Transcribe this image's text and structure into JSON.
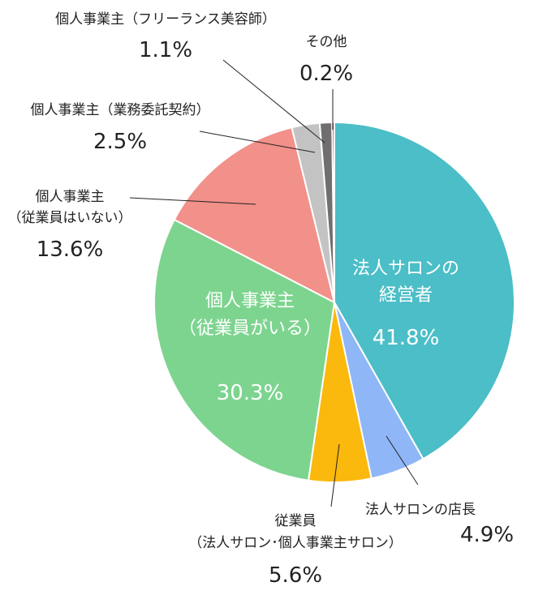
{
  "chart_data": {
    "type": "pie",
    "title": "",
    "slices": [
      {
        "name_lines": [
          "法人サロンの",
          "経営者"
        ],
        "value": 41.8,
        "value_label": "41.8%",
        "color": "#4bbec7",
        "label_inside": true
      },
      {
        "name_lines": [
          "法人サロンの店長"
        ],
        "value": 4.9,
        "value_label": "4.9%",
        "color": "#8fb6f6",
        "label_inside": false
      },
      {
        "name_lines": [
          "従業員",
          "（法人サロン･個人事業主サロン）"
        ],
        "value": 5.6,
        "value_label": "5.6%",
        "color": "#fbb80d",
        "label_inside": false
      },
      {
        "name_lines": [
          "個人事業主",
          "（従業員がいる）"
        ],
        "value": 30.3,
        "value_label": "30.3%",
        "color": "#7dd48f",
        "label_inside": true
      },
      {
        "name_lines": [
          "個人事業主",
          "（従業員はいない）"
        ],
        "value": 13.6,
        "value_label": "13.6%",
        "color": "#f2908a",
        "label_inside": false
      },
      {
        "name_lines": [
          "個人事業主（業務委託契約）"
        ],
        "value": 2.5,
        "value_label": "2.5%",
        "color": "#c3c3c3",
        "label_inside": false
      },
      {
        "name_lines": [
          "個人事業主（フリーランス美容師）"
        ],
        "value": 1.1,
        "value_label": "1.1%",
        "color": "#6f6f6f",
        "label_inside": false
      },
      {
        "name_lines": [
          "その他"
        ],
        "value": 0.2,
        "value_label": "0.2%",
        "color": "#9e2a1e",
        "label_inside": false
      }
    ]
  }
}
